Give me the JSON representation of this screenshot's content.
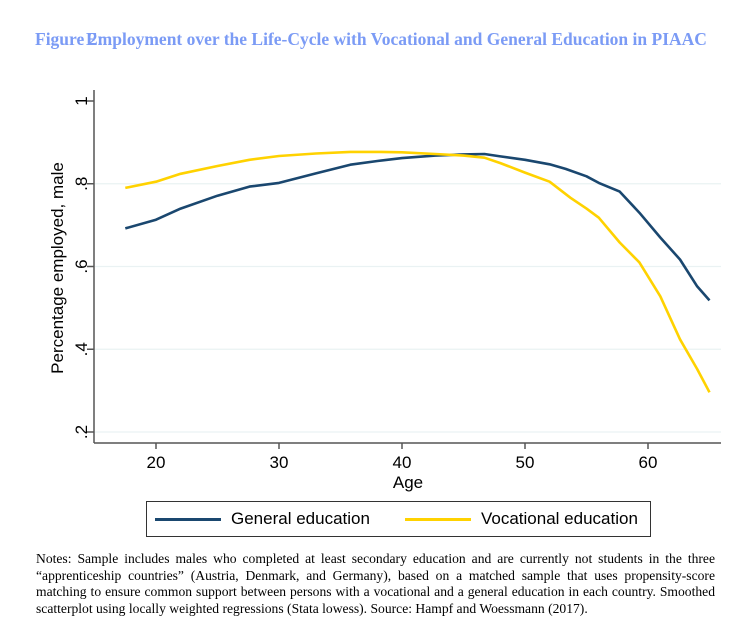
{
  "figure": {
    "number": "Figure 2:",
    "title": "Employment over the Life-Cycle with Vocational and General Education in PIAAC"
  },
  "colors": {
    "title": "#7b9bf5",
    "general": "#1a476f",
    "vocational": "#ffd200",
    "grid": "#eaf2f3"
  },
  "chart_data": {
    "type": "line",
    "title": "",
    "xlabel": "Age",
    "ylabel": "Percentage employed, male",
    "xlim": [
      15.2,
      66.0
    ],
    "ylim": [
      0.2,
      1.0
    ],
    "xticks": [
      20,
      30,
      40,
      50,
      60
    ],
    "xtick_labels": [
      "20",
      "30",
      "40",
      "50",
      "60"
    ],
    "yticks": [
      0.2,
      0.4,
      0.6,
      0.8,
      1.0
    ],
    "ytick_labels": [
      ".2",
      ".4",
      ".6",
      ".8",
      "1"
    ],
    "grid": "horizontal",
    "legend_position": "bottom",
    "series": [
      {
        "name": "General education",
        "color": "#1a476f",
        "x": [
          17.5,
          20,
          22,
          25,
          27.6,
          30,
          33,
          35.8,
          38,
          40,
          42.7,
          45,
          46.7,
          48,
          50,
          52,
          53.3,
          55,
          56,
          57.7,
          59.3,
          61,
          62.6,
          64,
          65
        ],
        "y": [
          0.692,
          0.713,
          0.74,
          0.771,
          0.793,
          0.802,
          0.825,
          0.846,
          0.855,
          0.862,
          0.868,
          0.871,
          0.872,
          0.866,
          0.858,
          0.847,
          0.836,
          0.818,
          0.802,
          0.781,
          0.73,
          0.67,
          0.617,
          0.552,
          0.518
        ]
      },
      {
        "name": "Vocational education",
        "color": "#ffd200",
        "x": [
          17.5,
          20,
          22,
          25,
          27.6,
          30,
          33,
          35.8,
          38,
          40,
          42.7,
          45,
          46.7,
          48,
          50,
          52,
          53.7,
          55,
          56,
          57.7,
          59.3,
          61,
          62.6,
          64,
          65
        ],
        "y": [
          0.79,
          0.805,
          0.824,
          0.843,
          0.858,
          0.867,
          0.873,
          0.877,
          0.877,
          0.876,
          0.872,
          0.868,
          0.863,
          0.85,
          0.827,
          0.805,
          0.766,
          0.74,
          0.718,
          0.658,
          0.61,
          0.528,
          0.424,
          0.352,
          0.296
        ]
      }
    ]
  },
  "legend": {
    "items": [
      {
        "label": "General education"
      },
      {
        "label": "Vocational education"
      }
    ]
  },
  "notes": "Notes: Sample includes males who completed at least secondary education and are currently not students in the three “apprenticeship countries” (Austria, Denmark, and Germany), based on a matched sample that uses propensity-score matching to ensure common support between persons with a vocational and a general education in each country. Smoothed scatterplot using locally weighted regressions (Stata lowess). Source: Hampf and Woessmann (2017)."
}
